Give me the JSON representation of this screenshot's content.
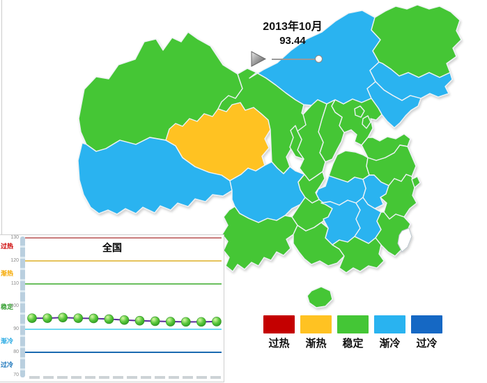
{
  "palette": {
    "overheat": "#C40000",
    "warming": "#FFC222",
    "stable": "#44C636",
    "cooling": "#29B3F0",
    "overcool": "#1568C4",
    "no_data": "#FFFFFF"
  },
  "timeline": {
    "date_label": "2013年10月",
    "value": "93.44"
  },
  "legend": {
    "items": [
      {
        "label": "过热",
        "category": "overheat"
      },
      {
        "label": "渐热",
        "category": "warming"
      },
      {
        "label": "稳定",
        "category": "stable"
      },
      {
        "label": "渐冷",
        "category": "cooling"
      },
      {
        "label": "过冷",
        "category": "overcool"
      }
    ]
  },
  "map": {
    "provinces": [
      {
        "id": "xinjiang",
        "category": "stable"
      },
      {
        "id": "xizang",
        "category": "cooling"
      },
      {
        "id": "qinghai",
        "category": "warming"
      },
      {
        "id": "gansu",
        "category": "stable"
      },
      {
        "id": "neimenggu",
        "category": "cooling"
      },
      {
        "id": "heilongjiang",
        "category": "stable"
      },
      {
        "id": "jilin",
        "category": "cooling"
      },
      {
        "id": "liaoning",
        "category": "cooling"
      },
      {
        "id": "hebei",
        "category": "stable"
      },
      {
        "id": "shanxi",
        "category": "stable"
      },
      {
        "id": "shaanxi",
        "category": "stable"
      },
      {
        "id": "ningxia",
        "category": "stable"
      },
      {
        "id": "shandong",
        "category": "stable"
      },
      {
        "id": "henan",
        "category": "stable"
      },
      {
        "id": "jiangsu",
        "category": "stable"
      },
      {
        "id": "anhui",
        "category": "cooling"
      },
      {
        "id": "hubei",
        "category": "cooling"
      },
      {
        "id": "zhejiang",
        "category": "stable"
      },
      {
        "id": "shanghai",
        "category": "stable"
      },
      {
        "id": "sichuan",
        "category": "cooling"
      },
      {
        "id": "chongqing",
        "category": "stable"
      },
      {
        "id": "guizhou",
        "category": "stable"
      },
      {
        "id": "hunan",
        "category": "cooling"
      },
      {
        "id": "jiangxi",
        "category": "cooling"
      },
      {
        "id": "fujian",
        "category": "stable"
      },
      {
        "id": "yunnan",
        "category": "stable"
      },
      {
        "id": "guangxi",
        "category": "stable"
      },
      {
        "id": "guangdong",
        "category": "stable"
      },
      {
        "id": "hainan",
        "category": "stable"
      },
      {
        "id": "beijing",
        "category": "stable"
      },
      {
        "id": "tianjin",
        "category": "stable"
      },
      {
        "id": "taiwan",
        "category": "no_data"
      }
    ]
  },
  "chart_data": {
    "type": "line",
    "title": "全国",
    "ylim": [
      70,
      130
    ],
    "yticks": [
      130,
      120,
      110,
      100,
      90,
      80,
      70
    ],
    "grid": false,
    "legend_position": "none",
    "x_labels_visible": false,
    "bands": [
      {
        "label": "过热",
        "line_value": 130,
        "line_color": "#C97B7B",
        "label_color": "#CC0000",
        "label_value": 127
      },
      {
        "label": "渐热",
        "line_value": 120,
        "line_color": "#E6C35C",
        "label_color": "#F5A800",
        "label_value": 115
      },
      {
        "label": "稳定",
        "line_value": 110,
        "line_color": "#6ABF5E",
        "label_color": "#3AA135",
        "label_value": 100.5
      },
      {
        "label": "渐冷",
        "line_value": 90,
        "line_color": "#6FD8F2",
        "label_color": "#29AAE3",
        "label_value": 85.5
      },
      {
        "label": "过冷",
        "line_value": 80,
        "line_color": "#1A6AB0",
        "label_color": "#1B75BB",
        "label_value": 75
      }
    ],
    "series": [
      {
        "name": "全国",
        "line_color": "#5B2C9C",
        "marker_color": "#44C636",
        "values": [
          94.9,
          94.9,
          95.2,
          94.9,
          94.8,
          94.5,
          94.1,
          93.8,
          93.6,
          93.4,
          93.3,
          93.3,
          93.44
        ]
      }
    ]
  }
}
